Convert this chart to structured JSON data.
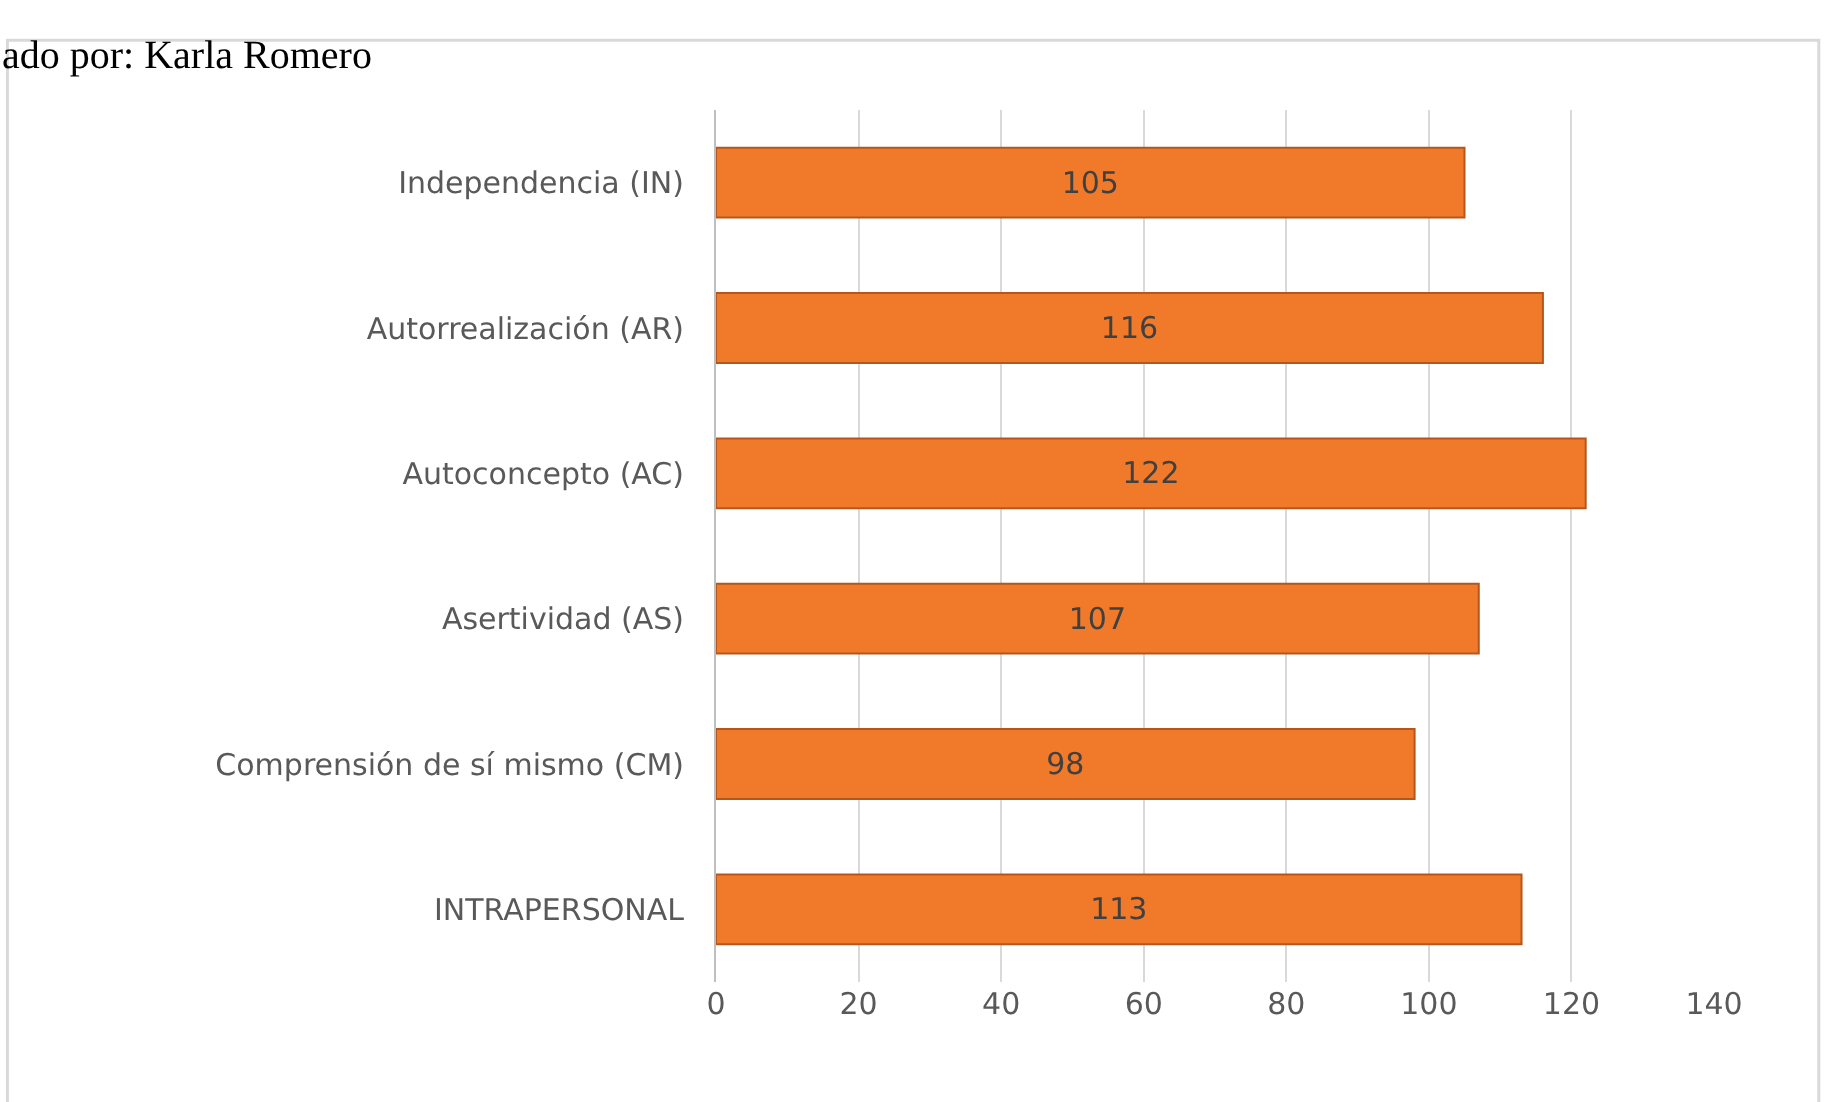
{
  "chart_data": {
    "type": "bar",
    "orientation": "horizontal",
    "categories": [
      "Independencia (IN)",
      "Autorrealización (AR)",
      "Autoconcepto (AC)",
      "Asertividad (AS)",
      "Comprensión de sí mismo (CM)",
      "INTRAPERSONAL"
    ],
    "values": [
      105,
      116,
      122,
      107,
      98,
      113
    ],
    "color": "#f07a2a",
    "xlim": [
      0,
      140
    ],
    "xticks": [
      0,
      20,
      40,
      60,
      80,
      100,
      120,
      140
    ],
    "grid": "x",
    "data_labels": true,
    "annotations": [
      "ado por: Karla Romero"
    ]
  }
}
